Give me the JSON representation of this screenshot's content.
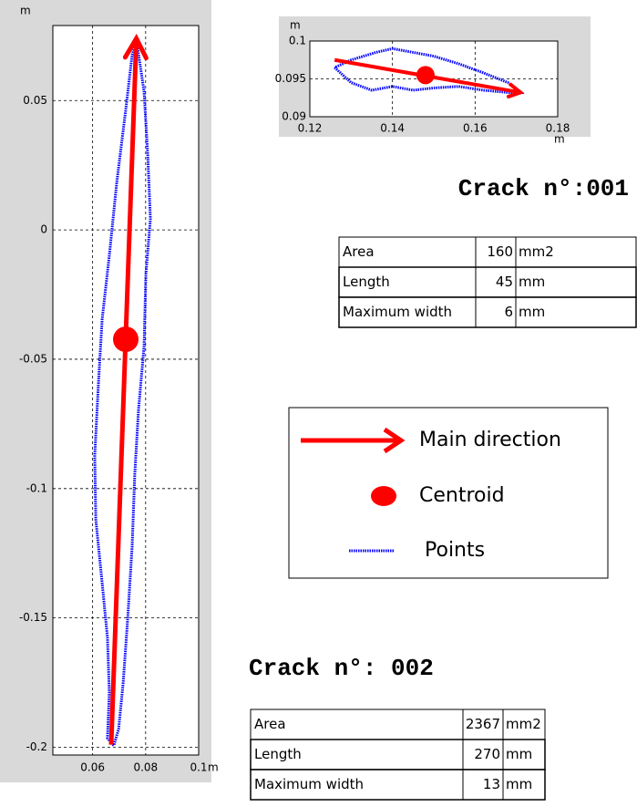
{
  "chart_data": [
    {
      "type": "scatter",
      "y_axis_label": "m",
      "x_axis_label": "m",
      "xlim": [
        0.045,
        0.1
      ],
      "ylim": [
        -0.203,
        0.079
      ],
      "xticks": [
        0.06,
        0.08,
        0.1
      ],
      "yticks": [
        0.05,
        0,
        -0.05,
        -0.1,
        -0.15,
        -0.2
      ],
      "grid": true,
      "outline": {
        "color": "#0000ff",
        "x": [
          0.0766,
          0.0794,
          0.0808,
          0.0818,
          0.0801,
          0.0794,
          0.0773,
          0.0759,
          0.0749,
          0.0732,
          0.0715,
          0.0698,
          0.068,
          0.0656,
          0.0663,
          0.0656,
          0.0636,
          0.0612,
          0.0608,
          0.0622,
          0.0636,
          0.0663,
          0.0691,
          0.0725,
          0.0749,
          0.0766
        ],
        "y": [
          0.0729,
          0.0535,
          0.0289,
          0.0042,
          -0.0169,
          -0.0451,
          -0.0697,
          -0.0944,
          -0.1225,
          -0.1507,
          -0.1754,
          -0.193,
          -0.1993,
          -0.1965,
          -0.1789,
          -0.1577,
          -0.1366,
          -0.112,
          -0.0873,
          -0.0592,
          -0.0345,
          -0.0099,
          0.0183,
          0.0465,
          0.0676,
          0.0729
        ]
      },
      "direction": {
        "color": "#ff0000",
        "x": [
          0.067,
          0.0765
        ],
        "y": [
          -0.199,
          0.074
        ]
      },
      "centroid": {
        "color": "#ff0000",
        "x": 0.0725,
        "y": -0.0423
      }
    },
    {
      "type": "scatter",
      "y_axis_label": "m",
      "x_axis_label": "m",
      "xlim": [
        0.12,
        0.18
      ],
      "ylim": [
        0.09,
        0.1
      ],
      "xticks": [
        0.12,
        0.14,
        0.16,
        0.18
      ],
      "yticks": [
        0.1,
        0.095,
        0.09
      ],
      "grid": true,
      "outline": {
        "color": "#0000ff",
        "x": [
          0.126,
          0.13,
          0.135,
          0.14,
          0.145,
          0.15,
          0.156,
          0.162,
          0.168,
          0.171,
          0.168,
          0.162,
          0.156,
          0.15,
          0.145,
          0.14,
          0.136,
          0.13,
          0.126
        ],
        "y": [
          0.0965,
          0.0945,
          0.0935,
          0.094,
          0.0935,
          0.0938,
          0.094,
          0.0935,
          0.0932,
          0.0932,
          0.0945,
          0.0958,
          0.097,
          0.098,
          0.0985,
          0.099,
          0.0985,
          0.0975,
          0.0965
        ]
      },
      "direction": {
        "color": "#ff0000",
        "x": [
          0.126,
          0.171
        ],
        "y": [
          0.0975,
          0.0932
        ]
      },
      "centroid": {
        "color": "#ff0000",
        "x": 0.148,
        "y": 0.0955
      }
    }
  ],
  "legend": {
    "items": [
      "Main direction",
      "Centroid",
      "Points"
    ]
  },
  "cracks": [
    {
      "title": "Crack n°:001",
      "rows": [
        [
          "Area",
          160,
          "mm2"
        ],
        [
          "Length",
          45,
          "mm"
        ],
        [
          "Maximum width",
          6,
          "mm"
        ]
      ]
    },
    {
      "title": "Crack n°: 002",
      "rows": [
        [
          "Area",
          2367,
          "mm2"
        ],
        [
          "Length",
          270,
          "mm"
        ],
        [
          "Maximum width",
          13,
          "mm"
        ]
      ]
    }
  ]
}
